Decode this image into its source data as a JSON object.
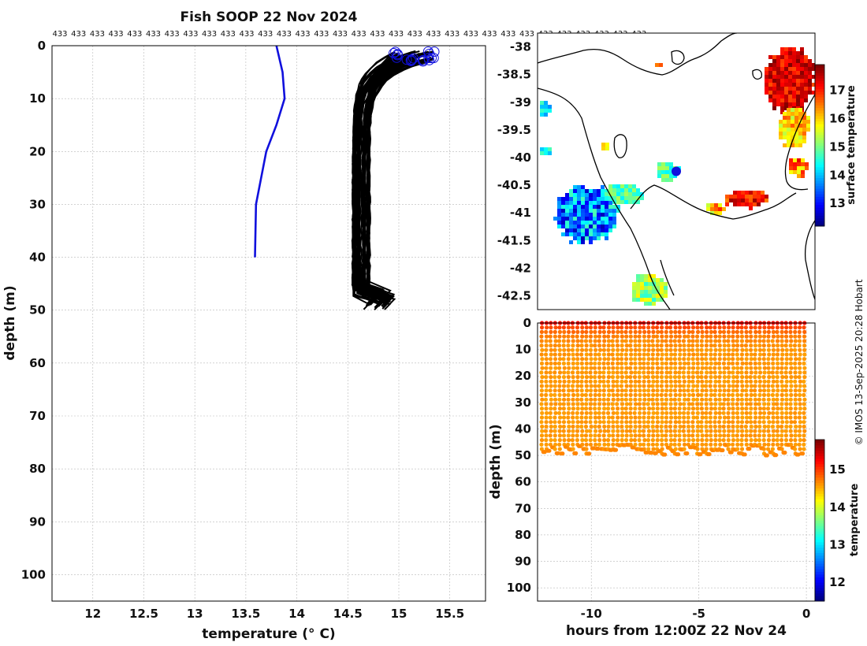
{
  "title": "Fish SOOP 22 Nov 2024",
  "copyright": "© IMOS 13-Sep-2025 20:28 Hobart",
  "chart_data": [
    {
      "id": "profile",
      "type": "line",
      "xlabel": "temperature (° C)",
      "ylabel": "depth (m)",
      "xlim": [
        11.6,
        15.85
      ],
      "ylim": [
        105,
        0
      ],
      "xticks": [
        12,
        12.5,
        13,
        13.5,
        14,
        14.5,
        15,
        15.5
      ],
      "yticks": [
        0,
        10,
        20,
        30,
        40,
        50,
        60,
        70,
        80,
        90,
        100
      ],
      "top_annotation": "433",
      "top_annotation_count": 32,
      "grid": true,
      "climatology": {
        "name": "reference profile",
        "color": "#1010dd",
        "points": [
          [
            13.8,
            0
          ],
          [
            13.86,
            5
          ],
          [
            13.88,
            10
          ],
          [
            13.8,
            15
          ],
          [
            13.7,
            20
          ],
          [
            13.6,
            30
          ],
          [
            13.59,
            40
          ]
        ]
      },
      "profiles": {
        "name": "observed casts",
        "color": "#000000",
        "count": 60,
        "surface_temp_range": [
          14.95,
          15.35
        ],
        "deep_temp_range": [
          14.55,
          14.72
        ],
        "bottom_depth_range": [
          47,
          50
        ],
        "surface_marker_color": "#1010dd"
      }
    },
    {
      "id": "map",
      "type": "heatmap",
      "ylim": [
        -42.75,
        -37.75
      ],
      "yticks": [
        -38,
        -38.5,
        -39,
        -39.5,
        -40,
        -40.5,
        -41,
        -41.5,
        -42,
        -42.5
      ],
      "colorbar_label": "surface temperature",
      "colorbar_ticks": [
        13,
        14,
        15,
        16,
        17
      ],
      "colorbar_range": [
        12.2,
        17.9
      ],
      "marker": {
        "lat": -40.25,
        "color": "#1010dd"
      }
    },
    {
      "id": "timeseries",
      "type": "scatter",
      "xlabel": "hours from 12:00Z 22 Nov 24",
      "ylabel": "depth (m)",
      "xlim": [
        -12.5,
        0.4
      ],
      "ylim": [
        105,
        0
      ],
      "xticks": [
        -10,
        -5,
        0
      ],
      "yticks": [
        0,
        10,
        20,
        30,
        40,
        50,
        60,
        70,
        80,
        90,
        100
      ],
      "profile_count": 60,
      "start_hour": -12.3,
      "end_hour": -0.1,
      "bottom_depth_range": [
        46,
        50
      ],
      "colorbar_label": "temperature",
      "colorbar_ticks": [
        12,
        13,
        14,
        15
      ],
      "colorbar_range": [
        11.5,
        15.8
      ]
    }
  ]
}
